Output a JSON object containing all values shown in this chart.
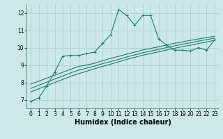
{
  "title": "",
  "xlabel": "Humidex (Indice chaleur)",
  "ylabel": "",
  "bg_color": "#cce8e8",
  "line_color": "#1a7a6e",
  "grid_color": "#aacccc",
  "x_data": [
    0,
    1,
    2,
    3,
    4,
    5,
    6,
    7,
    8,
    9,
    10,
    11,
    12,
    13,
    14,
    15,
    16,
    17,
    18,
    19,
    20,
    21,
    22,
    23
  ],
  "y_curve": [
    6.9,
    7.1,
    7.8,
    8.6,
    9.5,
    9.55,
    9.55,
    9.65,
    9.75,
    10.25,
    10.75,
    12.2,
    11.85,
    11.3,
    11.85,
    11.85,
    10.5,
    10.15,
    9.85,
    9.85,
    9.8,
    10.0,
    9.85,
    10.45
  ],
  "y_line1": [
    7.9,
    8.07,
    8.24,
    8.41,
    8.58,
    8.75,
    8.92,
    9.0,
    9.1,
    9.25,
    9.38,
    9.5,
    9.62,
    9.74,
    9.86,
    9.95,
    10.05,
    10.15,
    10.25,
    10.33,
    10.42,
    10.5,
    10.58,
    10.65
  ],
  "y_line2": [
    7.65,
    7.83,
    8.01,
    8.19,
    8.37,
    8.55,
    8.7,
    8.82,
    8.94,
    9.08,
    9.2,
    9.32,
    9.46,
    9.58,
    9.7,
    9.8,
    9.9,
    10.0,
    10.1,
    10.2,
    10.28,
    10.38,
    10.46,
    10.54
  ],
  "y_line3": [
    7.45,
    7.63,
    7.81,
    7.99,
    8.17,
    8.35,
    8.5,
    8.64,
    8.78,
    8.92,
    9.05,
    9.18,
    9.32,
    9.44,
    9.56,
    9.66,
    9.76,
    9.86,
    9.96,
    10.06,
    10.14,
    10.24,
    10.32,
    10.42
  ],
  "ylim": [
    6.5,
    12.5
  ],
  "xlim": [
    -0.5,
    23.5
  ],
  "yticks": [
    7,
    8,
    9,
    10,
    11,
    12
  ],
  "xticks": [
    0,
    1,
    2,
    3,
    4,
    5,
    6,
    7,
    8,
    9,
    10,
    11,
    12,
    13,
    14,
    15,
    16,
    17,
    18,
    19,
    20,
    21,
    22,
    23
  ],
  "tick_fontsize": 5.5,
  "label_fontsize": 7,
  "marker_size": 2.0,
  "line_width": 0.8
}
